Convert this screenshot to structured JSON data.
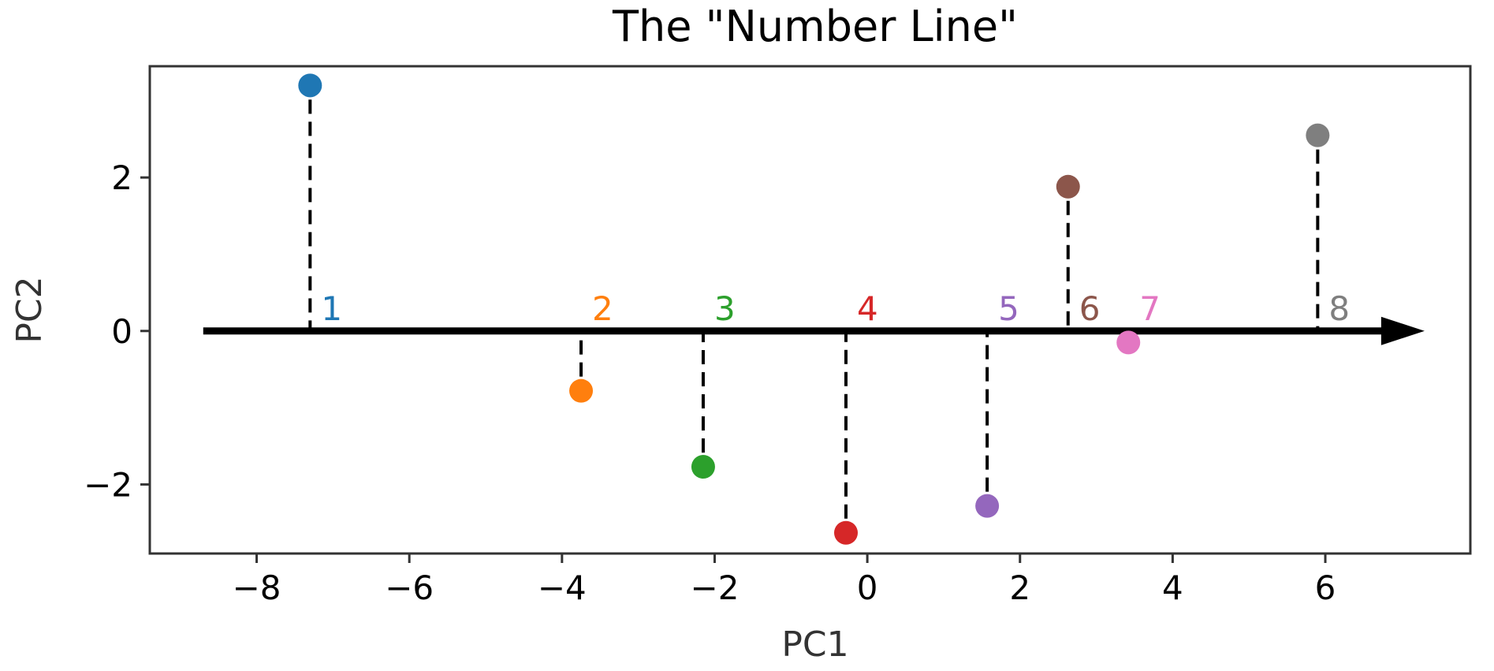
{
  "chart_data": {
    "type": "scatter",
    "title": "The \"Number Line\"",
    "xlabel": "PC1",
    "ylabel": "PC2",
    "xlim": [
      -9.4,
      7.9
    ],
    "ylim": [
      -2.9,
      3.45
    ],
    "xticks": [
      -8,
      -6,
      -4,
      -2,
      0,
      2,
      4,
      6
    ],
    "yticks": [
      -2,
      0,
      2
    ],
    "xtick_labels": [
      "−8",
      "−6",
      "−4",
      "−2",
      "0",
      "2",
      "4",
      "6"
    ],
    "ytick_labels": [
      "−2",
      "0",
      "2"
    ],
    "grid": false,
    "number_line": {
      "y": 0,
      "x_start": -8.7,
      "x_end": 7.3,
      "arrow": true
    },
    "points": [
      {
        "label": "1",
        "x": -7.3,
        "y": 3.2,
        "color": "#1f77b4"
      },
      {
        "label": "2",
        "x": -3.75,
        "y": -0.78,
        "color": "#ff7f0e"
      },
      {
        "label": "3",
        "x": -2.15,
        "y": -1.77,
        "color": "#2ca02c"
      },
      {
        "label": "4",
        "x": -0.28,
        "y": -2.63,
        "color": "#d62728"
      },
      {
        "label": "5",
        "x": 1.57,
        "y": -2.28,
        "color": "#9467bd"
      },
      {
        "label": "6",
        "x": 2.63,
        "y": 1.88,
        "color": "#8c564b"
      },
      {
        "label": "7",
        "x": 3.42,
        "y": -0.15,
        "color": "#e377c2"
      },
      {
        "label": "8",
        "x": 5.9,
        "y": 2.55,
        "color": "#7f7f7f"
      }
    ]
  }
}
